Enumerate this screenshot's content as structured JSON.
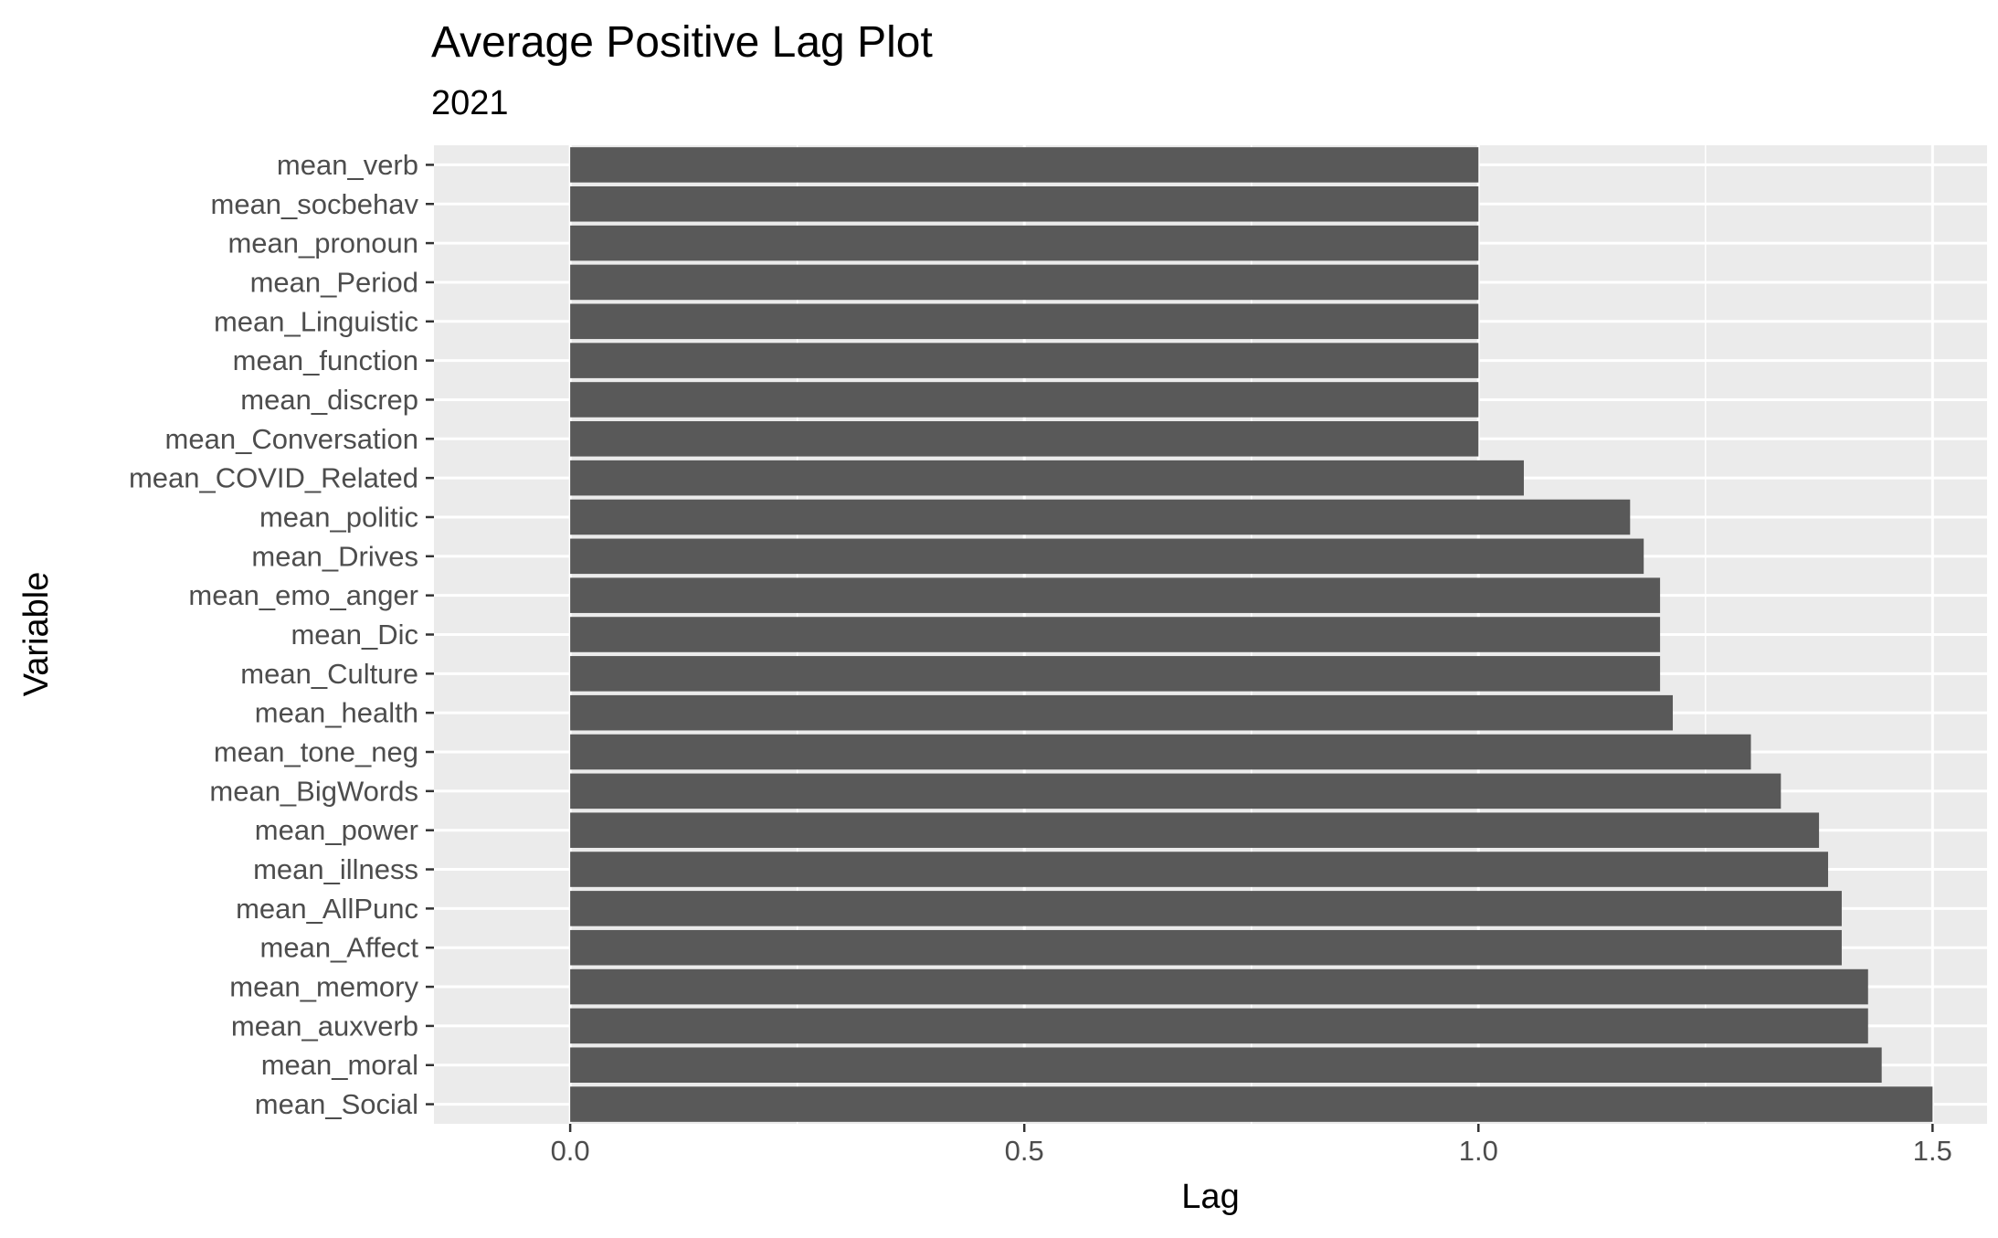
{
  "chart_data": {
    "type": "bar",
    "orientation": "horizontal",
    "title": "Average Positive Lag Plot",
    "subtitle": "2021",
    "xlabel": "Lag",
    "ylabel": "Variable",
    "xlim": [
      -0.15,
      1.56
    ],
    "xticks": [
      0.0,
      0.5,
      1.0,
      1.5
    ],
    "xtick_labels": [
      "0.0",
      "0.5",
      "1.0",
      "1.5"
    ],
    "grid": true,
    "legend": "none",
    "bar_color": "#595959",
    "panel_color": "#ebebeb",
    "grid_color": "#ffffff",
    "categories": [
      "mean_verb",
      "mean_socbehav",
      "mean_pronoun",
      "mean_Period",
      "mean_Linguistic",
      "mean_function",
      "mean_discrep",
      "mean_Conversation",
      "mean_COVID_Related",
      "mean_politic",
      "mean_Drives",
      "mean_emo_anger",
      "mean_Dic",
      "mean_Culture",
      "mean_health",
      "mean_tone_neg",
      "mean_BigWords",
      "mean_power",
      "mean_illness",
      "mean_AllPunc",
      "mean_Affect",
      "mean_memory",
      "mean_auxverb",
      "mean_moral",
      "mean_Social"
    ],
    "values": [
      1.0,
      1.0,
      1.0,
      1.0,
      1.0,
      1.0,
      1.0,
      1.0,
      1.05,
      1.167,
      1.182,
      1.2,
      1.2,
      1.2,
      1.214,
      1.3,
      1.333,
      1.375,
      1.385,
      1.4,
      1.4,
      1.429,
      1.429,
      1.444,
      1.5
    ]
  }
}
